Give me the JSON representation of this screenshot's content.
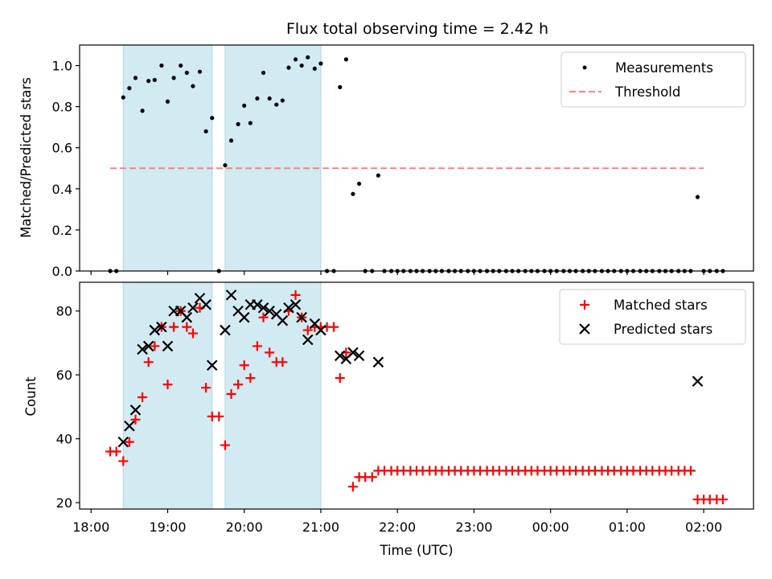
{
  "chart_data": [
    {
      "type": "scatter",
      "title": "Flux total observing time = 2.42 h",
      "xlabel": "",
      "ylabel": "Matched/Predicted stars",
      "ylim": [
        0,
        1.1
      ],
      "yticks": [
        "0.0",
        "0.2",
        "0.4",
        "0.6",
        "0.8",
        "1.0"
      ],
      "legend_position": "top-right",
      "shaded_intervals_hours": [
        [
          18.42,
          19.58
        ],
        [
          19.75,
          21.0
        ]
      ],
      "colors": {
        "measurements": "#000000",
        "threshold": "#ff7f7f",
        "shade": "#add8e6"
      },
      "threshold": {
        "name": "Threshold",
        "value": 0.5,
        "x_range": [
          18.25,
          26.0
        ]
      },
      "series": [
        {
          "name": "Measurements",
          "x": [
            18.25,
            18.33,
            18.42,
            18.5,
            18.58,
            18.67,
            18.75,
            18.83,
            18.92,
            19.0,
            19.08,
            19.17,
            19.25,
            19.33,
            19.42,
            19.5,
            19.58,
            19.67,
            19.75,
            19.83,
            19.92,
            20.0,
            20.08,
            20.17,
            20.25,
            20.33,
            20.42,
            20.5,
            20.58,
            20.67,
            20.75,
            20.83,
            20.92,
            21.0,
            21.08,
            21.17,
            21.25,
            21.33,
            21.42,
            21.5,
            21.58,
            21.67,
            21.75,
            21.83,
            21.92,
            22.0,
            22.08,
            22.17,
            22.25,
            22.33,
            22.42,
            22.5,
            22.58,
            22.67,
            22.75,
            22.83,
            22.92,
            23.0,
            23.08,
            23.17,
            23.25,
            23.33,
            23.42,
            23.5,
            23.58,
            23.67,
            23.75,
            23.83,
            23.92,
            24.0,
            24.08,
            24.17,
            24.25,
            24.33,
            24.42,
            24.5,
            24.58,
            24.67,
            24.75,
            24.83,
            24.92,
            25.0,
            25.08,
            25.17,
            25.25,
            25.33,
            25.42,
            25.5,
            25.58,
            25.67,
            25.75,
            25.83,
            25.92,
            26.0,
            26.08,
            26.17,
            26.25
          ],
          "y": [
            0.0,
            0.0,
            0.845,
            0.89,
            0.94,
            0.78,
            0.925,
            0.93,
            1.0,
            0.825,
            0.94,
            1.0,
            0.965,
            0.9,
            0.97,
            0.68,
            0.745,
            0.0,
            0.515,
            0.635,
            0.715,
            0.805,
            0.72,
            0.84,
            0.965,
            0.84,
            0.81,
            0.83,
            0.99,
            1.03,
            1.0,
            1.04,
            0.985,
            1.01,
            0.0,
            0.0,
            0.895,
            1.03,
            0.375,
            0.425,
            0.0,
            0.0,
            0.465,
            0.0,
            0.0,
            0.0,
            0.0,
            0.0,
            0.0,
            0.0,
            0.0,
            0.0,
            0.0,
            0.0,
            0.0,
            0.0,
            0.0,
            0.0,
            0.0,
            0.0,
            0.0,
            0.0,
            0.0,
            0.0,
            0.0,
            0.0,
            0.0,
            0.0,
            0.0,
            0.0,
            0.0,
            0.0,
            0.0,
            0.0,
            0.0,
            0.0,
            0.0,
            0.0,
            0.0,
            0.0,
            0.0,
            0.0,
            0.0,
            0.0,
            0.0,
            0.0,
            0.0,
            0.0,
            0.0,
            0.0,
            0.0,
            0.0,
            0.36,
            0.0,
            0.0,
            0.0,
            0.0
          ]
        }
      ]
    },
    {
      "type": "scatter",
      "title": "",
      "xlabel": "Time (UTC)",
      "ylabel": "Count",
      "ylim": [
        18,
        89
      ],
      "yticks": [
        "20",
        "40",
        "60",
        "80"
      ],
      "xlim_hours": [
        17.85,
        26.65
      ],
      "xtick_hours": [
        18,
        19,
        20,
        21,
        22,
        23,
        24,
        25,
        26
      ],
      "xtick_labels": [
        "18:00",
        "19:00",
        "20:00",
        "21:00",
        "22:00",
        "23:00",
        "00:00",
        "01:00",
        "02:00"
      ],
      "legend_position": "top-right",
      "shaded_intervals_hours": [
        [
          18.42,
          19.58
        ],
        [
          19.75,
          21.0
        ]
      ],
      "colors": {
        "matched": "#ff0000",
        "predicted": "#000000",
        "shade": "#add8e6"
      },
      "series": [
        {
          "name": "Matched stars",
          "x": [
            18.25,
            18.33,
            18.42,
            18.5,
            18.58,
            18.67,
            18.75,
            18.83,
            18.92,
            19.0,
            19.08,
            19.17,
            19.25,
            19.33,
            19.42,
            19.5,
            19.58,
            19.67,
            19.75,
            19.83,
            19.92,
            20.0,
            20.08,
            20.17,
            20.25,
            20.33,
            20.42,
            20.5,
            20.58,
            20.67,
            20.75,
            20.83,
            20.92,
            21.0,
            21.08,
            21.17,
            21.25,
            21.33,
            21.42,
            21.5,
            21.58,
            21.67,
            21.75,
            21.83,
            21.92,
            22.0,
            22.08,
            22.17,
            22.25,
            22.33,
            22.42,
            22.5,
            22.58,
            22.67,
            22.75,
            22.83,
            22.92,
            23.0,
            23.08,
            23.17,
            23.25,
            23.33,
            23.42,
            23.5,
            23.58,
            23.67,
            23.75,
            23.83,
            23.92,
            24.0,
            24.08,
            24.17,
            24.25,
            24.33,
            24.42,
            24.5,
            24.58,
            24.67,
            24.75,
            24.83,
            24.92,
            25.0,
            25.08,
            25.17,
            25.25,
            25.33,
            25.42,
            25.5,
            25.58,
            25.67,
            25.75,
            25.83,
            25.92,
            26.0,
            26.08,
            26.17,
            26.25
          ],
          "y": [
            36,
            36,
            33,
            39,
            46,
            53,
            64,
            69,
            75,
            57,
            75,
            80,
            75,
            73,
            81,
            56,
            47,
            47,
            38,
            54,
            57,
            63,
            59,
            69,
            78,
            67,
            64,
            64,
            80,
            85,
            78,
            74,
            75,
            75,
            75,
            75,
            59,
            67,
            25,
            28,
            28,
            28,
            30,
            30,
            30,
            30,
            30,
            30,
            30,
            30,
            30,
            30,
            30,
            30,
            30,
            30,
            30,
            30,
            30,
            30,
            30,
            30,
            30,
            30,
            30,
            30,
            30,
            30,
            30,
            30,
            30,
            30,
            30,
            30,
            30,
            30,
            30,
            30,
            30,
            30,
            30,
            30,
            30,
            30,
            30,
            30,
            30,
            30,
            30,
            30,
            30,
            30,
            21,
            21,
            21,
            21,
            21
          ]
        },
        {
          "name": "Predicted stars",
          "x": [
            18.42,
            18.5,
            18.58,
            18.67,
            18.75,
            18.83,
            18.92,
            19.0,
            19.08,
            19.17,
            19.25,
            19.33,
            19.42,
            19.5,
            19.58,
            19.75,
            19.83,
            19.92,
            20.0,
            20.08,
            20.17,
            20.25,
            20.33,
            20.42,
            20.5,
            20.58,
            20.67,
            20.75,
            20.83,
            20.92,
            21.0,
            21.25,
            21.33,
            21.42,
            21.5,
            21.75,
            25.92
          ],
          "y": [
            39,
            44,
            49,
            68,
            69,
            74,
            75,
            69,
            80,
            80,
            78,
            81,
            84,
            82,
            63,
            74,
            85,
            80,
            78,
            82,
            82,
            81,
            80,
            79,
            77,
            81,
            82,
            78,
            71,
            76,
            74,
            66,
            65,
            67,
            66,
            64,
            58
          ]
        }
      ]
    }
  ]
}
